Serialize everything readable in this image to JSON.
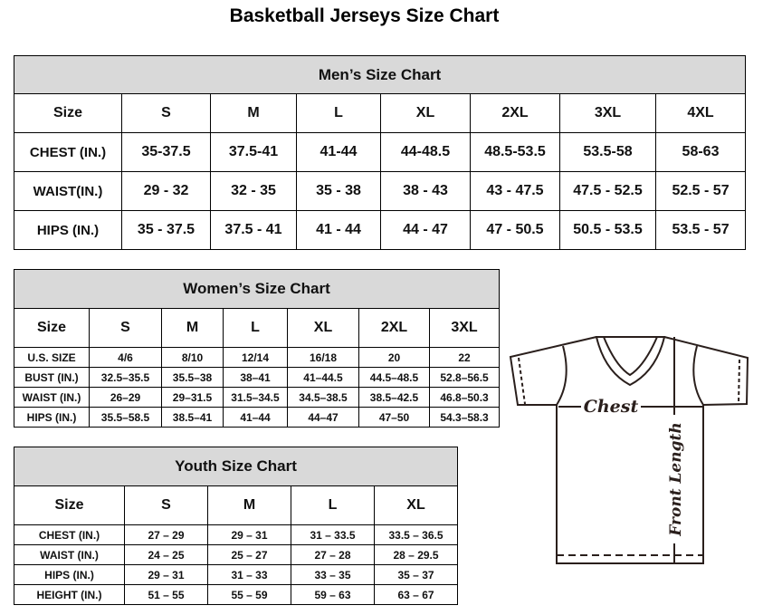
{
  "title": "Basketball Jerseys Size Chart",
  "men": {
    "heading": "Men’s Size Chart",
    "header": [
      "Size",
      "S",
      "M",
      "L",
      "XL",
      "2XL",
      "3XL",
      "4XL"
    ],
    "rows": [
      [
        "CHEST (IN.)",
        "35-37.5",
        "37.5-41",
        "41-44",
        "44-48.5",
        "48.5-53.5",
        "53.5-58",
        "58-63"
      ],
      [
        "WAIST(IN.)",
        "29 - 32",
        "32 - 35",
        "35 - 38",
        "38 - 43",
        "43 - 47.5",
        "47.5 - 52.5",
        "52.5 - 57"
      ],
      [
        "HIPS (IN.)",
        "35 - 37.5",
        "37.5 - 41",
        "41 - 44",
        "44 - 47",
        "47 - 50.5",
        "50.5 - 53.5",
        "53.5 - 57"
      ]
    ]
  },
  "women": {
    "heading": "Women’s Size Chart",
    "header": [
      "Size",
      "S",
      "M",
      "L",
      "XL",
      "2XL",
      "3XL"
    ],
    "rows": [
      [
        "U.S. SIZE",
        "4/6",
        "8/10",
        "12/14",
        "16/18",
        "20",
        "22"
      ],
      [
        "BUST (IN.)",
        "32.5–35.5",
        "35.5–38",
        "38–41",
        "41–44.5",
        "44.5–48.5",
        "52.8–56.5"
      ],
      [
        "WAIST (IN.)",
        "26–29",
        "29–31.5",
        "31.5–34.5",
        "34.5–38.5",
        "38.5–42.5",
        "46.8–50.3"
      ],
      [
        "HIPS (IN.)",
        "35.5–58.5",
        "38.5–41",
        "41–44",
        "44–47",
        "47–50",
        "54.3–58.3"
      ]
    ]
  },
  "youth": {
    "heading": "Youth Size Chart",
    "header": [
      "Size",
      "S",
      "M",
      "L",
      "XL"
    ],
    "rows": [
      [
        "CHEST (IN.)",
        "27 – 29",
        "29 – 31",
        "31 – 33.5",
        "33.5 – 36.5"
      ],
      [
        "WAIST (IN.)",
        "24 – 25",
        "25 – 27",
        "27 – 28",
        "28 – 29.5"
      ],
      [
        "HIPS (IN.)",
        "29 – 31",
        "31 – 33",
        "33 – 35",
        "35 – 37"
      ],
      [
        "HEIGHT (IN.)",
        "51 – 55",
        "55 – 59",
        "59 – 63",
        "63 – 67"
      ]
    ]
  },
  "diagram": {
    "chest_label": "Chest",
    "length_label": "Front Length"
  }
}
